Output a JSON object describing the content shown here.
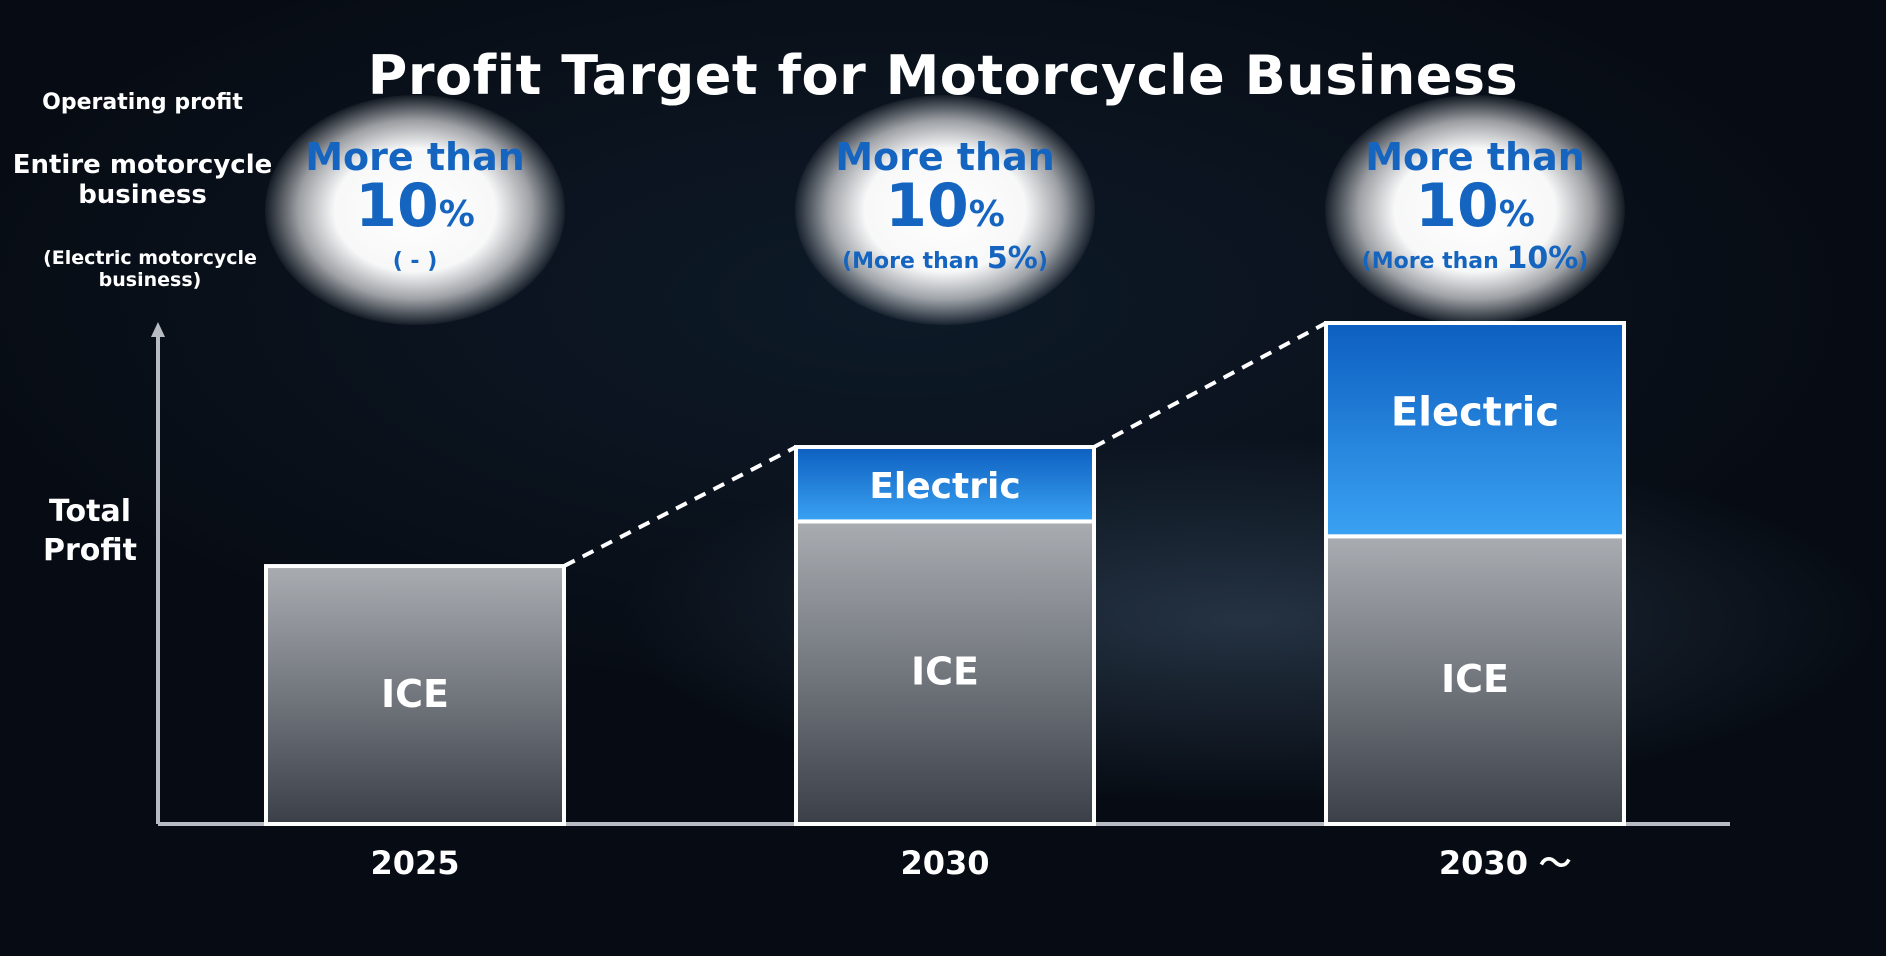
{
  "title": "Profit Target for Motorcycle Business",
  "labels": {
    "operating_profit": "Operating profit",
    "entire_business": "Entire motorcycle business",
    "electric_business": "(Electric motorcycle business)",
    "y_axis": "Total Profit"
  },
  "targets": [
    {
      "more": "More than",
      "pct": "10",
      "sym": "%",
      "sub_pre": "( - )",
      "sub_num": "",
      "sub_post": ""
    },
    {
      "more": "More than",
      "pct": "10",
      "sym": "%",
      "sub_pre": "(More than ",
      "sub_num": "5%",
      "sub_post": ")"
    },
    {
      "more": "More than",
      "pct": "10",
      "sym": "%",
      "sub_pre": "(More than ",
      "sub_num": "10%",
      "sub_post": ")"
    }
  ],
  "chart_data": {
    "type": "bar",
    "stacked": true,
    "title": "Profit Target for Motorcycle Business",
    "ylabel": "Total Profit",
    "categories": [
      "2025",
      "2030",
      "2030 ～"
    ],
    "series": [
      {
        "name": "ICE",
        "values": [
          52,
          61,
          58
        ]
      },
      {
        "name": "Electric",
        "values": [
          0,
          15,
          43
        ]
      }
    ],
    "ylim": [
      0,
      101
    ],
    "connectors": "dashed lines between bar tops",
    "colors": {
      "ICE": "#9a9ea4",
      "Electric": "#1e82e0",
      "axis": "#b8bcc2",
      "bar_border": "#ffffff"
    }
  }
}
